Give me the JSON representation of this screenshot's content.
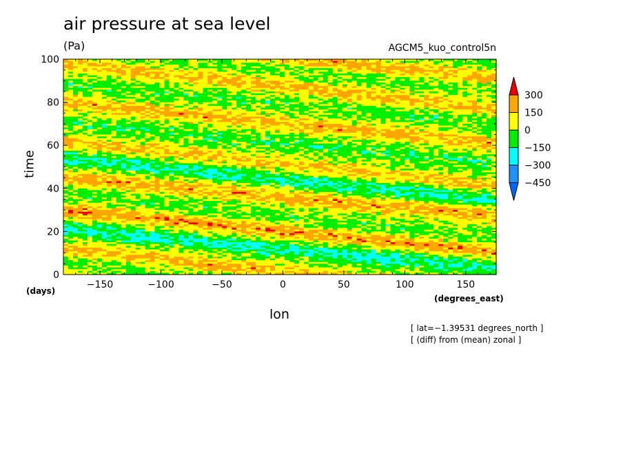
{
  "title": "air pressure at sea level",
  "units": "(Pa)",
  "dataset": "AGCM5_kuo_control5n",
  "notes": [
    "[ lat=−1.39531 degrees_north ]",
    "[ (diff) from (mean) zonal ]"
  ],
  "chart_data": {
    "type": "heatmap",
    "title": "air pressure at sea level",
    "xlabel": "lon",
    "ylabel": "time",
    "x_units": "(degrees_east)",
    "y_units": "(days)",
    "xlim": [
      -180,
      175
    ],
    "ylim": [
      0,
      100
    ],
    "x_ticks": [
      -150,
      -100,
      -50,
      0,
      50,
      100,
      150
    ],
    "x_tick_labels": [
      "−150",
      "−100",
      "−50",
      "0",
      "50",
      "100",
      "150"
    ],
    "y_ticks": [
      0,
      20,
      40,
      60,
      80,
      100
    ],
    "y_tick_labels": [
      "0",
      "20",
      "40",
      "60",
      "80",
      "100"
    ],
    "colorbar": {
      "levels": [
        300,
        150,
        0,
        -150,
        -300,
        -450
      ],
      "level_labels": [
        "300",
        "150",
        "0",
        "−150",
        "−300",
        "−450"
      ],
      "colors": [
        "#ee0000",
        "#ffa500",
        "#ffff00",
        "#00ee00",
        "#00ffff",
        "#1e90ff",
        "#0066ff"
      ]
    },
    "bands": [
      {
        "t0": 2,
        "slope": 0.06,
        "v": 180
      },
      {
        "t0": 12,
        "slope": 0.05,
        "v": -60
      },
      {
        "t0": 20,
        "slope": 0.055,
        "v": 200
      },
      {
        "t0": 30,
        "slope": 0.05,
        "v": -80
      },
      {
        "t0": 38,
        "slope": 0.06,
        "v": 160
      },
      {
        "t0": 46,
        "slope": 0.055,
        "v": -170
      },
      {
        "t0": 55,
        "slope": 0.05,
        "v": 210
      },
      {
        "t0": 63,
        "slope": 0.06,
        "v": -60
      },
      {
        "t0": 70,
        "slope": 0.055,
        "v": 240
      },
      {
        "t0": 79,
        "slope": 0.05,
        "v": -180
      },
      {
        "t0": 88,
        "slope": 0.06,
        "v": 200
      },
      {
        "t0": 96,
        "slope": 0.05,
        "v": -40
      }
    ]
  }
}
